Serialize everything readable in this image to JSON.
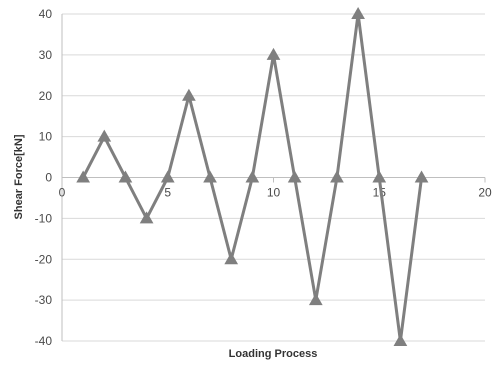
{
  "chart_data": {
    "type": "line",
    "title": "",
    "xlabel": "Loading Process",
    "ylabel": "Shear Force[kN]",
    "xlim": [
      0,
      20
    ],
    "ylim": [
      -40,
      40
    ],
    "x_ticks": [
      0,
      5,
      10,
      15,
      20
    ],
    "y_ticks": [
      40,
      30,
      20,
      10,
      0,
      -10,
      -20,
      -30,
      -40
    ],
    "grid": "horizontal",
    "legend": "none",
    "marker": "triangle",
    "series_color": "#7f7f7f",
    "grid_color": "#d9d9d9",
    "series": [
      {
        "x": [
          1,
          2,
          3,
          4,
          5,
          6,
          7,
          8,
          9,
          10,
          11,
          12,
          13,
          14,
          15,
          16,
          17
        ],
        "y": [
          0,
          10,
          0,
          -10,
          0,
          20,
          0,
          -20,
          0,
          30,
          0,
          -30,
          0,
          40,
          0,
          -40,
          0
        ]
      }
    ]
  }
}
